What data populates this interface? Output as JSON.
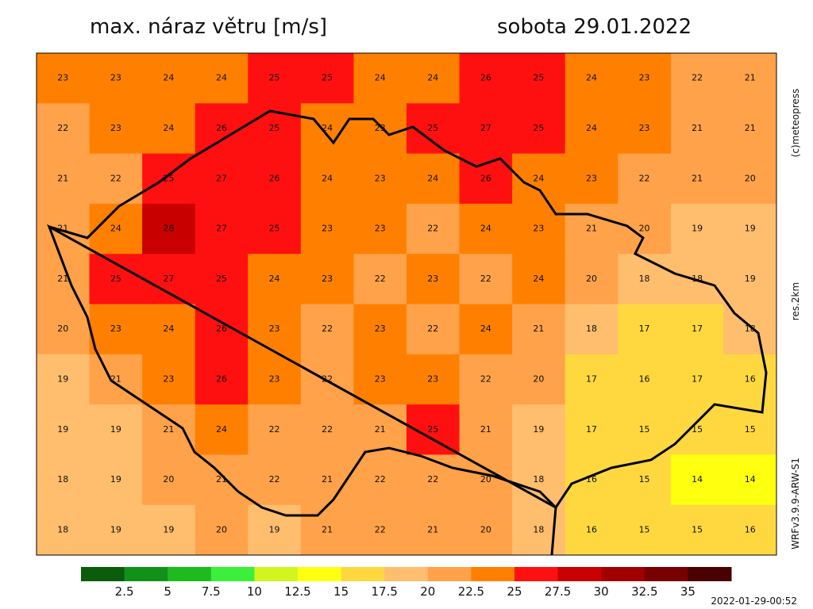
{
  "header": {
    "title": "max. náraz větru [m/s]",
    "date": "sobota 29.01.2022"
  },
  "side": {
    "copyright": "(c)meteopress",
    "resolution": "res.2km",
    "model": "WRFv3.9.9-ARW-S1"
  },
  "timestamp": "2022-01-29-00:52",
  "colorbar": {
    "labels": [
      2.5,
      5,
      7.5,
      10,
      12.5,
      15,
      17.5,
      20,
      22.5,
      25,
      27.5,
      30,
      32.5,
      35
    ],
    "colors": [
      "#0b5c0b",
      "#12911a",
      "#1dbb1d",
      "#3af03a",
      "#d2f51e",
      "#ffff10",
      "#ffd840",
      "#ffbd6e",
      "#ffa24a",
      "#ff8000",
      "#ff1010",
      "#c80000",
      "#a00000",
      "#780000",
      "#4a0000"
    ]
  },
  "field": {
    "values": [
      [
        23,
        23,
        24,
        24,
        25,
        25,
        24,
        24,
        26,
        25,
        24,
        23,
        22,
        21
      ],
      [
        22,
        23,
        24,
        26,
        25,
        24,
        23,
        25,
        27,
        25,
        24,
        23,
        21,
        21
      ],
      [
        21,
        22,
        25,
        27,
        26,
        24,
        23,
        24,
        26,
        24,
        23,
        22,
        21,
        20
      ],
      [
        21,
        24,
        28,
        27,
        25,
        23,
        23,
        22,
        24,
        23,
        21,
        20,
        19,
        19
      ],
      [
        21,
        25,
        27,
        25,
        24,
        23,
        22,
        23,
        22,
        24,
        20,
        18,
        18,
        19
      ],
      [
        20,
        23,
        24,
        26,
        23,
        22,
        23,
        22,
        24,
        21,
        18,
        17,
        17,
        18
      ],
      [
        19,
        21,
        23,
        26,
        23,
        22,
        23,
        23,
        22,
        20,
        17,
        16,
        17,
        16
      ],
      [
        19,
        19,
        21,
        24,
        22,
        22,
        21,
        25,
        21,
        19,
        17,
        15,
        15,
        15
      ],
      [
        18,
        19,
        20,
        21,
        22,
        21,
        22,
        22,
        20,
        18,
        16,
        15,
        14,
        14
      ],
      [
        18,
        19,
        19,
        20,
        19,
        21,
        22,
        21,
        20,
        18,
        16,
        15,
        15,
        16
      ]
    ]
  }
}
